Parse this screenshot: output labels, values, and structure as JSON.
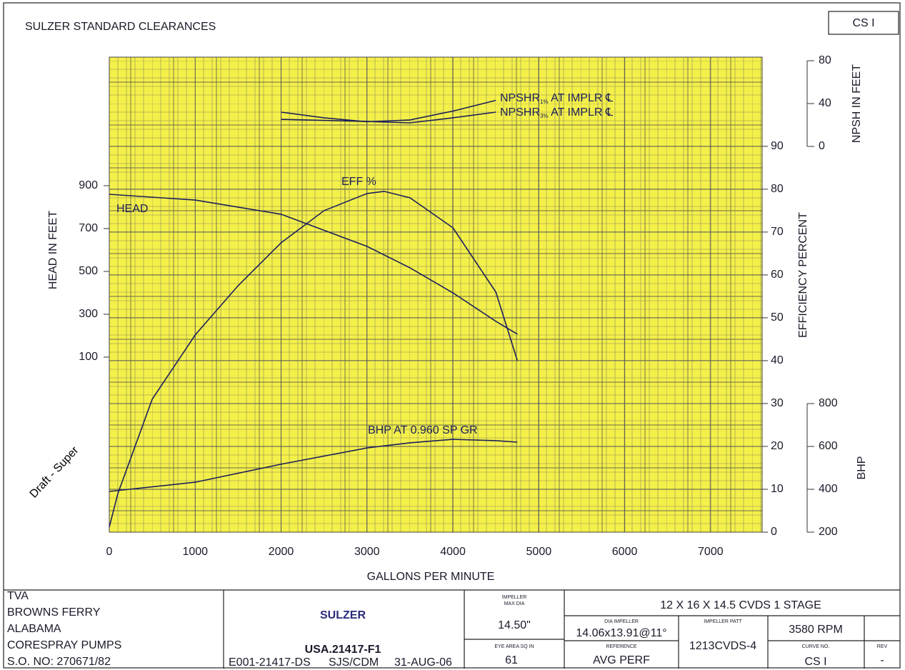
{
  "header": {
    "title": "SULZER STANDARD CLEARANCES",
    "curve_box": "CS I"
  },
  "watermark": "Draft - Super",
  "chart_data": {
    "type": "line",
    "x_label": "GALLONS PER MINUTE",
    "y_label": "HEAD IN FEET",
    "y2_label": "EFFICIENCY PERCENT",
    "y3_label": "NPSH IN FEET",
    "y4_label": "BHP",
    "xlim": [
      0,
      7600
    ],
    "xticks": [
      0,
      1000,
      2000,
      3000,
      4000,
      5000,
      6000,
      7000
    ],
    "ylim": [
      -717,
      1500
    ],
    "yticks": [
      100,
      300,
      500,
      700,
      900
    ],
    "y2lim": [
      0,
      110.8
    ],
    "y2ticks": [
      0,
      10,
      20,
      30,
      40,
      50,
      60,
      70,
      80,
      90
    ],
    "y3lim": [
      0,
      80
    ],
    "y3ticks": [
      0,
      40,
      80
    ],
    "y4lim": [
      200,
      800
    ],
    "y4ticks": [
      200,
      400,
      600,
      800
    ],
    "grid": true,
    "background": "#f4f04a",
    "series": [
      {
        "name": "HEAD",
        "color": "#1c1f5a",
        "axis": "y",
        "x": [
          0,
          1000,
          2000,
          3000,
          3500,
          4000,
          4500,
          4750
        ],
        "values": [
          860,
          833,
          767,
          617,
          517,
          400,
          267,
          207
        ]
      },
      {
        "name": "EFF %",
        "color": "#1c1f5a",
        "axis": "y2",
        "x": [
          0,
          100,
          500,
          1000,
          1500,
          2000,
          2500,
          3000,
          3200,
          3500,
          4000,
          4500,
          4750
        ],
        "values": [
          1.2,
          9,
          31,
          46,
          57.5,
          67.5,
          75,
          79,
          79.5,
          78,
          71,
          56,
          40
        ]
      },
      {
        "name": "NPSHR",
        "sub": "1%",
        "suffix": " AT IMPLR ℄",
        "color": "#1c1f5a",
        "axis": "y3",
        "x": [
          2000,
          2500,
          3000,
          3500,
          4000,
          4500
        ],
        "values": [
          32,
          26.7,
          23,
          24.7,
          33,
          43
        ]
      },
      {
        "name": "NPSHR",
        "sub": "3%",
        "suffix": " AT IMPLR ℄",
        "color": "#1c1f5a",
        "axis": "y3",
        "x": [
          2000,
          3000,
          3500,
          4000,
          4500
        ],
        "values": [
          25.3,
          23.3,
          22,
          26.7,
          32
        ]
      },
      {
        "name": "BHP AT 0.960 SP GR",
        "color": "#1c1f5a",
        "axis": "y4",
        "x": [
          0,
          1000,
          2000,
          3000,
          3500,
          4000,
          4500,
          4750
        ],
        "values": [
          390,
          433,
          517,
          593,
          617,
          633,
          627,
          620
        ]
      }
    ]
  },
  "title_block": {
    "customer": [
      "TVA",
      "BROWNS FERRY",
      "ALABAMA",
      "CORESPRAY PUMPS",
      "S.O. NO: 270671/82"
    ],
    "logo": "SULZER",
    "drawing_no": "USA.21417-F1",
    "refs": [
      "E001-21417-DS",
      "SJS/CDM",
      "31-AUG-06"
    ],
    "impeller_max_dia_label": [
      "IMPELLER",
      "MAX DIA"
    ],
    "impeller_max_dia": "14.50\"",
    "eye_area_label": "EYE AREA SQ IN",
    "eye_area": "61",
    "pump": "12 X 16 X 14.5 CVDS  1 STAGE",
    "dia_impeller_label": "DIA IMPELLER",
    "dia_impeller": "14.06x13.91@11°",
    "impeller_patt_label": "IMPELLER PATT",
    "impeller_patt": "1213CVDS-4",
    "speed": "3580 RPM",
    "reference_label": "REFERENCE",
    "reference": "AVG PERF",
    "curve_no_label": "CURVE NO.",
    "curve_no": "CS I",
    "rev_label": "REV",
    "rev": "-"
  }
}
